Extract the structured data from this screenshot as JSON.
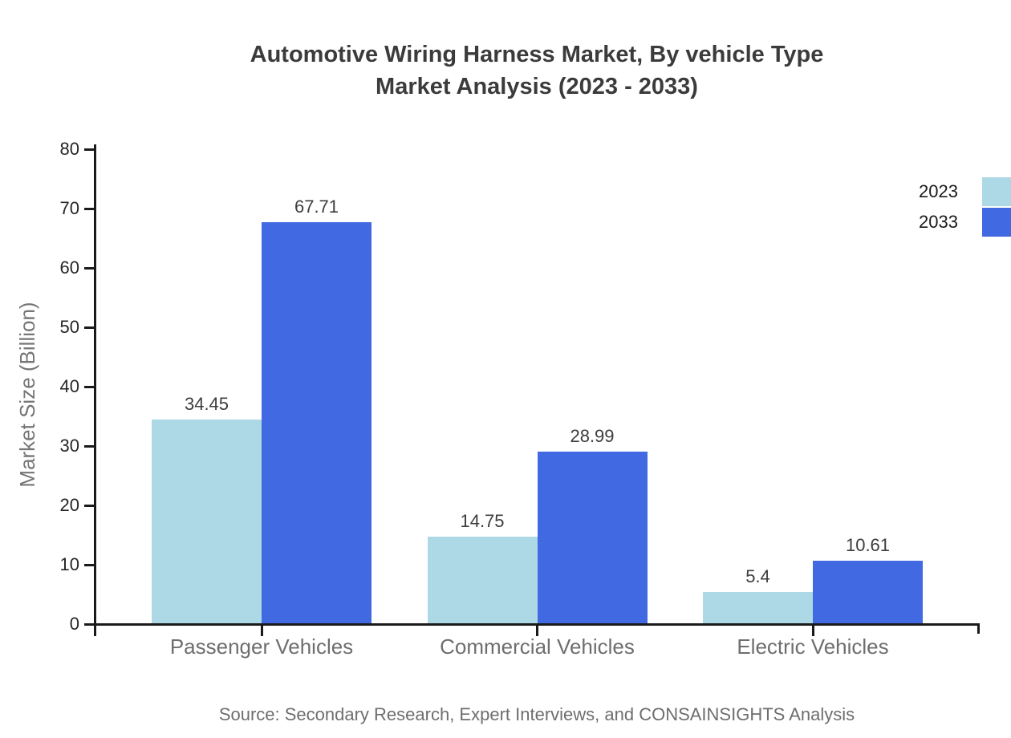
{
  "title": {
    "line1": "Automotive Wiring Harness Market, By vehicle Type",
    "line2": "Market Analysis (2023 - 2033)"
  },
  "chart_data": {
    "type": "bar",
    "categories": [
      "Passenger Vehicles",
      "Commercial Vehicles",
      "Electric Vehicles"
    ],
    "series": [
      {
        "name": "2023",
        "color": "#ADD8E6",
        "values": [
          34.45,
          14.75,
          5.4
        ]
      },
      {
        "name": "2033",
        "color": "#4169E1",
        "values": [
          67.71,
          28.99,
          10.61
        ]
      }
    ],
    "title": "Automotive Wiring Harness Market, By vehicle Type Market Analysis (2023 - 2033)",
    "xlabel": "",
    "ylabel": "Market Size (Billion)",
    "ylim": [
      0,
      80
    ],
    "yticks": [
      0,
      10,
      20,
      30,
      40,
      50,
      60,
      70,
      80
    ],
    "grid": false,
    "legend_position": "top-right",
    "value_labels_shown": true
  },
  "source": "Source: Secondary Research, Expert Interviews, and CONSAINSIGHTS Analysis",
  "colors": {
    "series_2023": "#ADD8E6",
    "series_2033": "#4169E1",
    "axis": "#1a1a1a",
    "title_text": "#3b3b3b",
    "tick_text": "#262626",
    "category_text": "#6e6e6e",
    "value_text": "#3d3d3d",
    "axis_label_text": "#757575",
    "source_text": "#6e6e6e"
  }
}
